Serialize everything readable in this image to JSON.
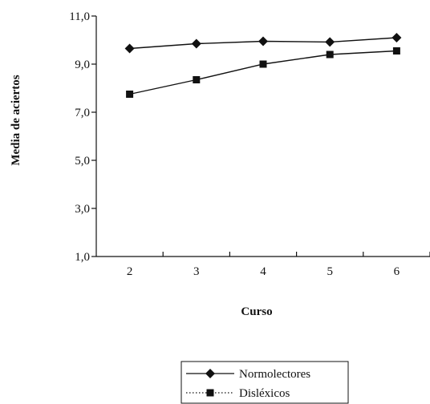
{
  "chart_data": {
    "type": "line",
    "title": "",
    "xlabel": "Curso",
    "ylabel": "Media de aciertos",
    "categories": [
      "2",
      "3",
      "4",
      "5",
      "6"
    ],
    "ylim": [
      1.0,
      11.0
    ],
    "yticks": [
      "1,0",
      "3,0",
      "5,0",
      "7,0",
      "9,0",
      "11,0"
    ],
    "ytick_values": [
      1,
      3,
      5,
      7,
      9,
      11
    ],
    "grid": false,
    "legend_position": "bottom-right",
    "series": [
      {
        "name": "Normolectores",
        "marker": "diamond",
        "line": "solid",
        "color": "#111111",
        "values": [
          9.65,
          9.85,
          9.95,
          9.92,
          10.1
        ]
      },
      {
        "name": "Disléxicos",
        "marker": "square",
        "line": "dotted",
        "color": "#111111",
        "values": [
          7.75,
          8.35,
          9.0,
          9.4,
          9.55
        ]
      }
    ]
  }
}
